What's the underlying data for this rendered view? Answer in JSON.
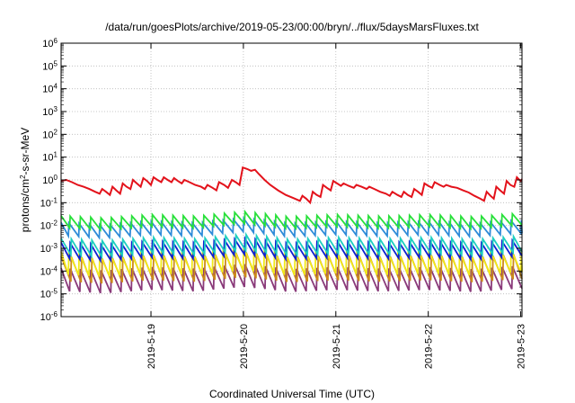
{
  "chart_data": {
    "type": "line",
    "title": "/data/run/goesPlots/archive/2019-05-23/00:00/bryn/../flux/5daysMarsFluxes.txt",
    "xlabel": "Coordinated Universal Time (UTC)",
    "ylabel": {
      "prefix": "protons/cm",
      "sup": "2",
      "suffix": "-s-sr-MeV"
    },
    "y_scale": "log",
    "ylim": [
      1e-06,
      1000000.0
    ],
    "y_ticks": [
      {
        "exp": "-6"
      },
      {
        "exp": "-5"
      },
      {
        "exp": "-4"
      },
      {
        "exp": "-3"
      },
      {
        "exp": "-2"
      },
      {
        "exp": "-1"
      },
      {
        "exp": "0"
      },
      {
        "exp": "1"
      },
      {
        "exp": "2"
      },
      {
        "exp": "3"
      },
      {
        "exp": "4"
      },
      {
        "exp": "5"
      },
      {
        "exp": "6"
      }
    ],
    "y_tick_base": "10",
    "xlim": [
      "2019-05-18T00:40",
      "2019-05-23T00:20"
    ],
    "x_ticks": [
      "2019-5-19",
      "2019-5-20",
      "2019-5-21",
      "2019-5-22",
      "2019-5-23"
    ],
    "grid": true,
    "legend": "none",
    "series": [
      {
        "color": "#e3121b",
        "sawtooth": false,
        "points": [
          [
            "2019-05-18T00:40",
            0.9
          ],
          [
            "2019-05-18T02:00",
            1.0
          ],
          [
            "2019-05-18T03:30",
            0.8
          ],
          [
            "2019-05-18T05:00",
            0.6
          ],
          [
            "2019-05-18T06:30",
            0.5
          ],
          [
            "2019-05-18T08:00",
            0.4
          ],
          [
            "2019-05-18T09:30",
            0.3
          ],
          [
            "2019-05-18T10:40",
            0.25
          ],
          [
            "2019-05-18T11:20",
            0.4
          ],
          [
            "2019-05-18T12:20",
            0.3
          ],
          [
            "2019-05-18T13:20",
            0.22
          ],
          [
            "2019-05-18T14:00",
            0.5
          ],
          [
            "2019-05-18T15:00",
            0.35
          ],
          [
            "2019-05-18T16:00",
            0.25
          ],
          [
            "2019-05-18T16:40",
            0.7
          ],
          [
            "2019-05-18T17:40",
            0.5
          ],
          [
            "2019-05-18T18:40",
            0.4
          ],
          [
            "2019-05-18T19:20",
            1.0
          ],
          [
            "2019-05-18T20:20",
            0.7
          ],
          [
            "2019-05-18T21:20",
            0.5
          ],
          [
            "2019-05-18T22:00",
            1.2
          ],
          [
            "2019-05-18T23:00",
            0.9
          ],
          [
            "2019-05-19T00:00",
            0.6
          ],
          [
            "2019-05-19T00:40",
            1.3
          ],
          [
            "2019-05-19T01:40",
            1.0
          ],
          [
            "2019-05-19T02:40",
            0.8
          ],
          [
            "2019-05-19T03:20",
            1.3
          ],
          [
            "2019-05-19T04:20",
            1.0
          ],
          [
            "2019-05-19T05:20",
            0.8
          ],
          [
            "2019-05-19T06:00",
            1.2
          ],
          [
            "2019-05-19T07:00",
            0.9
          ],
          [
            "2019-05-19T08:00",
            0.7
          ],
          [
            "2019-05-19T08:40",
            1.0
          ],
          [
            "2019-05-19T10:00",
            0.8
          ],
          [
            "2019-05-19T11:30",
            0.6
          ],
          [
            "2019-05-19T13:00",
            0.5
          ],
          [
            "2019-05-19T14:00",
            0.4
          ],
          [
            "2019-05-19T14:40",
            0.6
          ],
          [
            "2019-05-19T16:00",
            0.45
          ],
          [
            "2019-05-19T17:00",
            0.35
          ],
          [
            "2019-05-19T17:40",
            0.8
          ],
          [
            "2019-05-19T19:00",
            0.6
          ],
          [
            "2019-05-19T20:00",
            0.45
          ],
          [
            "2019-05-19T21:00",
            1.0
          ],
          [
            "2019-05-19T22:00",
            0.8
          ],
          [
            "2019-05-19T23:00",
            0.6
          ],
          [
            "2019-05-19T23:50",
            3.5
          ],
          [
            "2019-05-20T01:00",
            3.0
          ],
          [
            "2019-05-20T02:00",
            2.5
          ],
          [
            "2019-05-20T03:00",
            2.8
          ],
          [
            "2019-05-20T04:00",
            1.8
          ],
          [
            "2019-05-20T05:30",
            1.0
          ],
          [
            "2019-05-20T07:00",
            0.6
          ],
          [
            "2019-05-20T09:00",
            0.35
          ],
          [
            "2019-05-20T11:00",
            0.22
          ],
          [
            "2019-05-20T13:00",
            0.16
          ],
          [
            "2019-05-20T14:40",
            0.12
          ],
          [
            "2019-05-20T15:20",
            0.2
          ],
          [
            "2019-05-20T16:20",
            0.15
          ],
          [
            "2019-05-20T17:20",
            0.1
          ],
          [
            "2019-05-20T18:00",
            0.3
          ],
          [
            "2019-05-20T19:00",
            0.22
          ],
          [
            "2019-05-20T20:00",
            0.18
          ],
          [
            "2019-05-20T20:40",
            0.6
          ],
          [
            "2019-05-20T21:40",
            0.45
          ],
          [
            "2019-05-20T22:40",
            0.35
          ],
          [
            "2019-05-20T23:20",
            0.9
          ],
          [
            "2019-05-21T00:20",
            0.7
          ],
          [
            "2019-05-21T01:20",
            0.55
          ],
          [
            "2019-05-21T02:00",
            0.7
          ],
          [
            "2019-05-21T03:20",
            0.55
          ],
          [
            "2019-05-21T04:40",
            0.45
          ],
          [
            "2019-05-21T05:20",
            0.6
          ],
          [
            "2019-05-21T06:40",
            0.5
          ],
          [
            "2019-05-21T08:00",
            0.4
          ],
          [
            "2019-05-21T08:40",
            0.5
          ],
          [
            "2019-05-21T10:00",
            0.4
          ],
          [
            "2019-05-21T11:30",
            0.3
          ],
          [
            "2019-05-21T13:00",
            0.25
          ],
          [
            "2019-05-21T14:00",
            0.2
          ],
          [
            "2019-05-21T14:40",
            0.3
          ],
          [
            "2019-05-21T16:00",
            0.22
          ],
          [
            "2019-05-21T17:00",
            0.18
          ],
          [
            "2019-05-21T17:40",
            0.3
          ],
          [
            "2019-05-21T18:40",
            0.22
          ],
          [
            "2019-05-21T19:40",
            0.18
          ],
          [
            "2019-05-21T20:20",
            0.4
          ],
          [
            "2019-05-21T21:20",
            0.3
          ],
          [
            "2019-05-21T22:20",
            0.22
          ],
          [
            "2019-05-21T23:00",
            0.7
          ],
          [
            "2019-05-22T00:00",
            0.55
          ],
          [
            "2019-05-22T01:00",
            0.45
          ],
          [
            "2019-05-22T01:40",
            0.8
          ],
          [
            "2019-05-22T03:00",
            0.6
          ],
          [
            "2019-05-22T04:00",
            0.5
          ],
          [
            "2019-05-22T04:40",
            0.6
          ],
          [
            "2019-05-22T06:00",
            0.5
          ],
          [
            "2019-05-22T07:30",
            0.45
          ],
          [
            "2019-05-22T09:00",
            0.35
          ],
          [
            "2019-05-22T10:30",
            0.28
          ],
          [
            "2019-05-22T12:00",
            0.2
          ],
          [
            "2019-05-22T13:30",
            0.15
          ],
          [
            "2019-05-22T14:30",
            0.12
          ],
          [
            "2019-05-22T15:10",
            0.3
          ],
          [
            "2019-05-22T16:10",
            0.2
          ],
          [
            "2019-05-22T17:00",
            0.15
          ],
          [
            "2019-05-22T17:40",
            0.5
          ],
          [
            "2019-05-22T18:40",
            0.35
          ],
          [
            "2019-05-22T19:40",
            0.25
          ],
          [
            "2019-05-22T20:20",
            0.9
          ],
          [
            "2019-05-22T21:20",
            0.6
          ],
          [
            "2019-05-22T22:20",
            0.5
          ],
          [
            "2019-05-22T23:00",
            1.3
          ],
          [
            "2019-05-22T23:40",
            1.0
          ],
          [
            "2019-05-23T00:00",
            0.9
          ],
          [
            "2019-05-23T00:20",
            1.1
          ]
        ]
      },
      {
        "color": "#28e03a",
        "sawtooth": true,
        "peak": 0.03,
        "trough": 0.009
      },
      {
        "color": "#2e8bd8",
        "sawtooth": true,
        "peak": 0.015,
        "trough": 0.004
      },
      {
        "color": "#1ecfc0",
        "sawtooth": true,
        "peak": 0.003,
        "trough": 0.0006
      },
      {
        "color": "#0f1fd0",
        "sawtooth": true,
        "peak": 0.002,
        "trough": 0.0004
      },
      {
        "color": "#f0e81a",
        "sawtooth": true,
        "peak": 0.0008,
        "trough": 8e-05
      },
      {
        "color": "#cc8a1a",
        "sawtooth": true,
        "peak": 0.0005,
        "trough": 4e-05
      },
      {
        "color": "#8a3a7a",
        "sawtooth": true,
        "peak": 0.00015,
        "trough": 1.5e-05
      }
    ],
    "sawtooth_period_hours": 2.67,
    "envelope": [
      [
        "2019-05-18T00:40",
        0.9
      ],
      [
        "2019-05-18T12:00",
        0.7
      ],
      [
        "2019-05-19T00:00",
        1.0
      ],
      [
        "2019-05-19T12:00",
        0.85
      ],
      [
        "2019-05-20T00:00",
        1.35
      ],
      [
        "2019-05-20T12:00",
        0.8
      ],
      [
        "2019-05-21T00:00",
        1.0
      ],
      [
        "2019-05-21T12:00",
        0.85
      ],
      [
        "2019-05-22T00:00",
        1.0
      ],
      [
        "2019-05-22T12:00",
        0.8
      ],
      [
        "2019-05-23T00:20",
        1.15
      ]
    ]
  }
}
